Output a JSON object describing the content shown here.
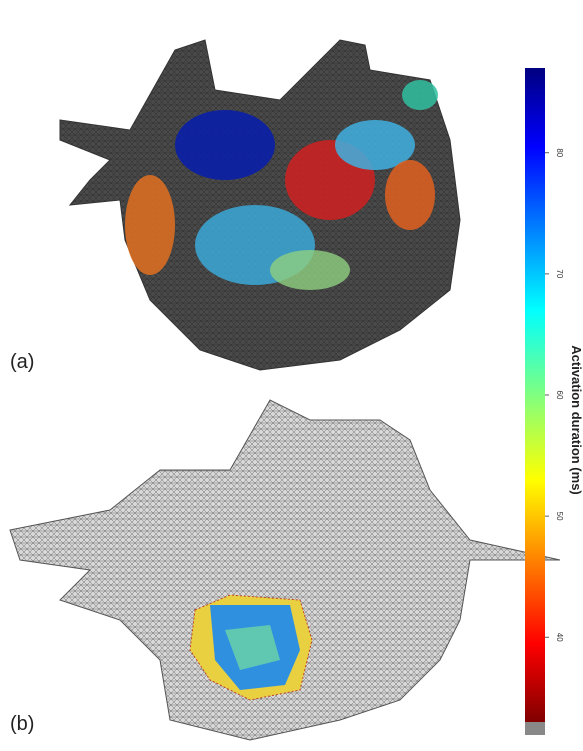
{
  "panels": [
    {
      "label": "(a)"
    },
    {
      "label": "(b)"
    }
  ],
  "colorbar": {
    "label": "Activation duration (ms)",
    "lim": [
      33,
      87
    ],
    "ticks": [
      40,
      50,
      60,
      70,
      80
    ]
  }
}
